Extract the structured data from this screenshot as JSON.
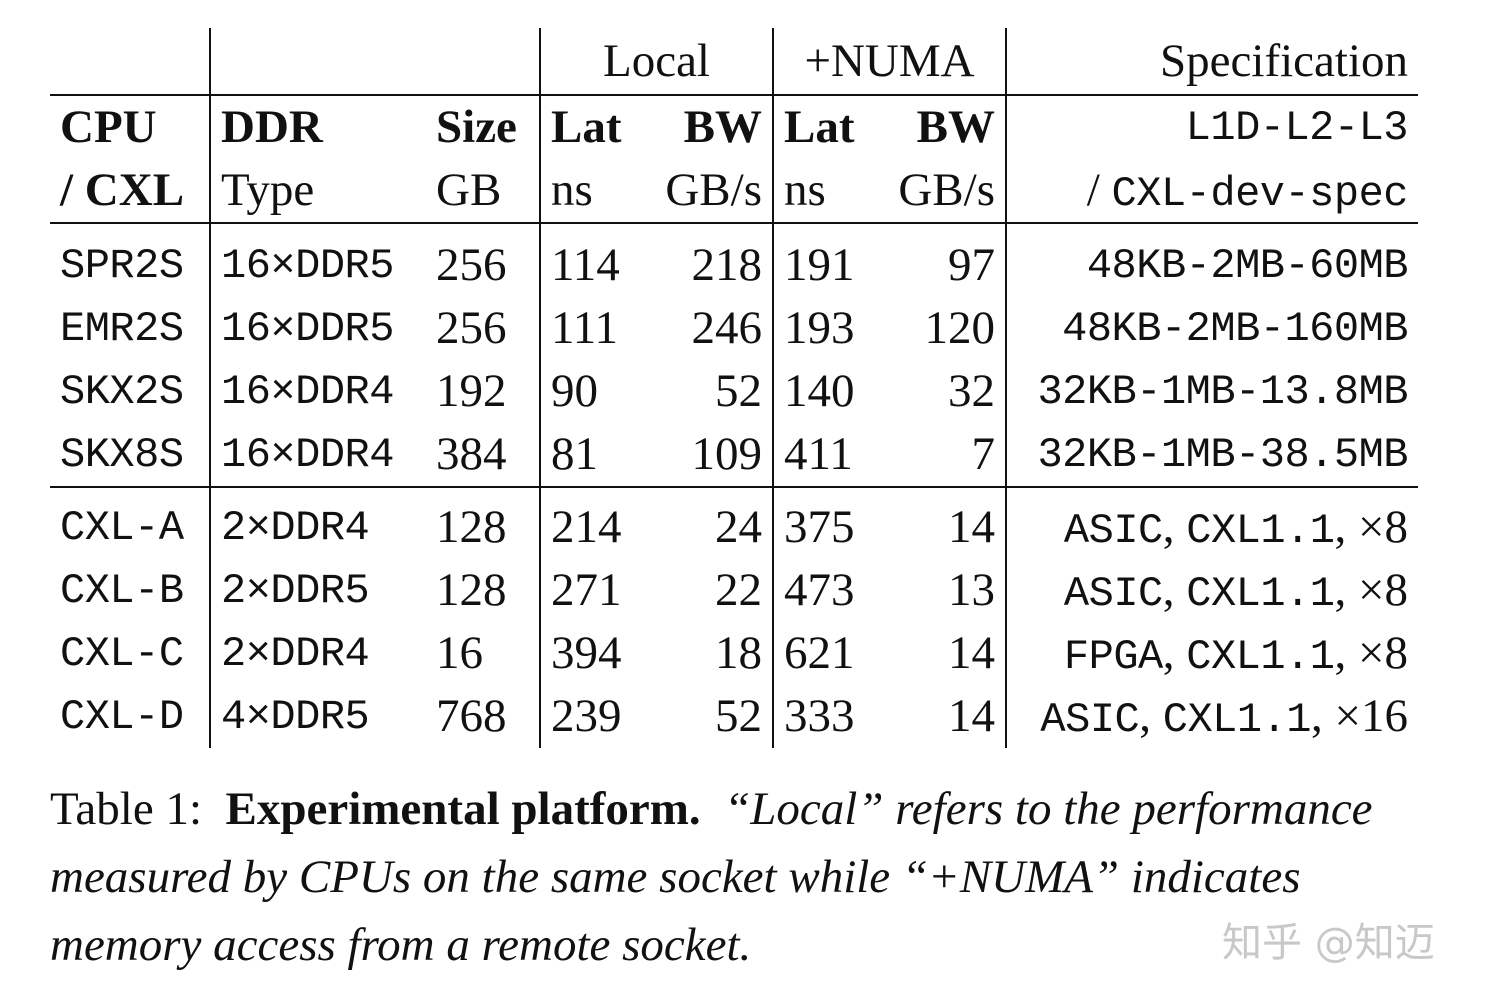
{
  "table": {
    "group_headers": {
      "local": "Local",
      "numa": "+NUMA",
      "spec": "Specification"
    },
    "headers": {
      "row1": {
        "cpu": "CPU",
        "ddr": "DDR",
        "size": "Size",
        "local_lat": "Lat",
        "local_bw": "BW",
        "numa_lat": "Lat",
        "numa_bw": "BW",
        "spec": "L1D-L2-L3"
      },
      "row2": {
        "cpu": "/ CXL",
        "ddr": "Type",
        "size": "GB",
        "local_lat": "ns",
        "local_bw": "GB/s",
        "numa_lat": "ns",
        "numa_bw": "GB/s",
        "spec_slash": "/ ",
        "spec": "CXL-dev-spec"
      }
    },
    "cpu_rows": [
      {
        "name": "SPR2S",
        "ddr": "16×DDR5",
        "size": "256",
        "local_lat": "114",
        "local_bw": "218",
        "numa_lat": "191",
        "numa_bw": "97",
        "spec": "48KB-2MB-60MB"
      },
      {
        "name": "EMR2S",
        "ddr": "16×DDR5",
        "size": "256",
        "local_lat": "111",
        "local_bw": "246",
        "numa_lat": "193",
        "numa_bw": "120",
        "spec": "48KB-2MB-160MB"
      },
      {
        "name": "SKX2S",
        "ddr": "16×DDR4",
        "size": "192",
        "local_lat": "90",
        "local_bw": "52",
        "numa_lat": "140",
        "numa_bw": "32",
        "spec": "32KB-1MB-13.8MB"
      },
      {
        "name": "SKX8S",
        "ddr": "16×DDR4",
        "size": "384",
        "local_lat": "81",
        "local_bw": "109",
        "numa_lat": "411",
        "numa_bw": "7",
        "spec": "32KB-1MB-38.5MB"
      }
    ],
    "cxl_rows": [
      {
        "name": "CXL-A",
        "ddr": "2×DDR4",
        "size": "128",
        "local_lat": "214",
        "local_bw": "24",
        "numa_lat": "375",
        "numa_bw": "14",
        "spec_a": "ASIC",
        "spec_b": "CXL1.1",
        "spec_c": "×8"
      },
      {
        "name": "CXL-B",
        "ddr": "2×DDR5",
        "size": "128",
        "local_lat": "271",
        "local_bw": "22",
        "numa_lat": "473",
        "numa_bw": "13",
        "spec_a": "ASIC",
        "spec_b": "CXL1.1",
        "spec_c": "×8"
      },
      {
        "name": "CXL-C",
        "ddr": "2×DDR4",
        "size": "16",
        "local_lat": "394",
        "local_bw": "18",
        "numa_lat": "621",
        "numa_bw": "14",
        "spec_a": "FPGA",
        "spec_b": "CXL1.1",
        "spec_c": "×8"
      },
      {
        "name": "CXL-D",
        "ddr": "4×DDR5",
        "size": "768",
        "local_lat": "239",
        "local_bw": "52",
        "numa_lat": "333",
        "numa_bw": "14",
        "spec_a": "ASIC",
        "spec_b": "CXL1.1",
        "spec_c": "×16"
      }
    ],
    "spec_separator": ", "
  },
  "caption": {
    "label": "Table 1:",
    "title": "Experimental platform.",
    "text": "“Local” refers to the performance measured by CPUs on the same socket while “+NUMA” indicates memory access from a remote socket."
  },
  "watermark": "知乎 @知迈"
}
